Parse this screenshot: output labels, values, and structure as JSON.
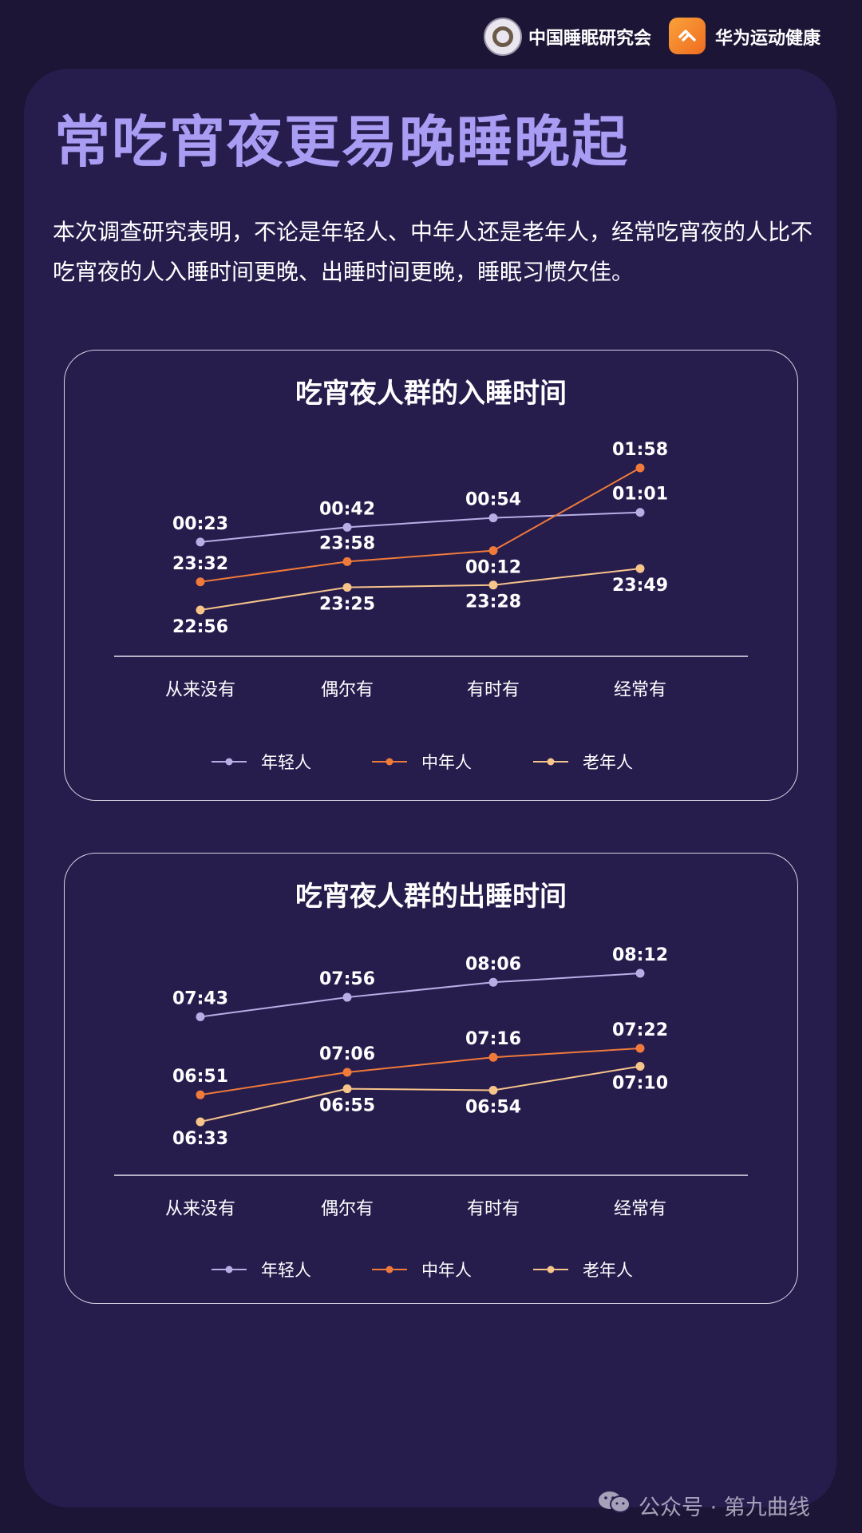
{
  "header": {
    "org1": "中国睡眠研究会",
    "org1_logo": "sleep-society-seal",
    "org2": "华为运动健康",
    "org2_logo": "huawei-health-logo"
  },
  "title": "常吃宵夜更易晚睡晚起",
  "intro": "本次调查研究表明，不论是年轻人、中年人还是老年人，经常吃宵夜的人比不吃宵夜的人入睡时间更晚、出睡时间更晚，睡眠习惯欠佳。",
  "colors": {
    "young": "#b8aee6",
    "middle": "#f07a3a",
    "old": "#f7c48a",
    "title": "#a99cf3",
    "background": "#1c1535",
    "panel": "#261d4d"
  },
  "chart_data": [
    {
      "type": "line",
      "title": "吃宵夜人群的入睡时间",
      "categories": [
        "从来没有",
        "偶尔有",
        "有时有",
        "经常有"
      ],
      "unit": "clock time (HH:MM, past midnight continues next day)",
      "series": [
        {
          "name": "年轻人",
          "key": "young",
          "values": [
            "00:23",
            "00:42",
            "00:54",
            "01:01"
          ]
        },
        {
          "name": "中年人",
          "key": "middle",
          "values": [
            "23:32",
            "23:58",
            "00:12",
            "01:58"
          ]
        },
        {
          "name": "老年人",
          "key": "old",
          "values": [
            "22:56",
            "23:25",
            "23:28",
            "23:49"
          ]
        }
      ],
      "legend": "bottom",
      "grid": false
    },
    {
      "type": "line",
      "title": "吃宵夜人群的出睡时间",
      "categories": [
        "从来没有",
        "偶尔有",
        "有时有",
        "经常有"
      ],
      "unit": "clock time (HH:MM)",
      "series": [
        {
          "name": "年轻人",
          "key": "young",
          "values": [
            "07:43",
            "07:56",
            "08:06",
            "08:12"
          ]
        },
        {
          "name": "中年人",
          "key": "middle",
          "values": [
            "06:51",
            "07:06",
            "07:16",
            "07:22"
          ]
        },
        {
          "name": "老年人",
          "key": "old",
          "values": [
            "06:33",
            "06:55",
            "06:54",
            "07:10"
          ]
        }
      ],
      "legend": "bottom",
      "grid": false
    }
  ],
  "watermark": {
    "icon": "wechat-icon",
    "text": "公众号 · 第九曲线"
  }
}
